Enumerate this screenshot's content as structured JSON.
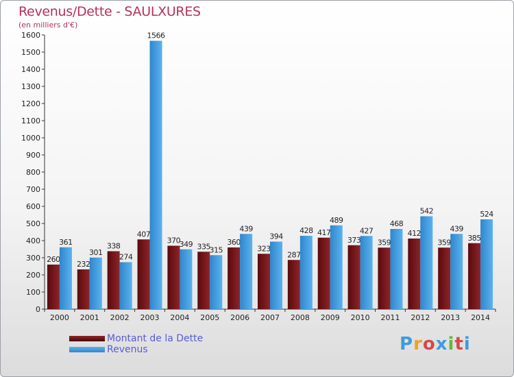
{
  "header": {
    "title": "Revenus/Dette - SAULXURES",
    "subtitle": "(en milliers d'€)"
  },
  "colors": {
    "title": "#b5305c",
    "debt": "#7a1418",
    "revenue": "#3d9be0",
    "legend_text": "#5a5adc"
  },
  "legend": {
    "debt_label": "Montant de la Dette",
    "revenue_label": "Revenus"
  },
  "logo": {
    "text": "Proxiti"
  },
  "chart_data": {
    "type": "bar",
    "title": "Revenus/Dette - SAULXURES",
    "subtitle": "(en milliers d'€)",
    "categories": [
      "2000",
      "2001",
      "2002",
      "2003",
      "2004",
      "2005",
      "2006",
      "2007",
      "2008",
      "2009",
      "2010",
      "2011",
      "2012",
      "2013",
      "2014"
    ],
    "series": [
      {
        "name": "Montant de la Dette",
        "color": "#7a1418",
        "values": [
          260,
          232,
          338,
          407,
          370,
          335,
          360,
          323,
          287,
          417,
          373,
          359,
          412,
          359,
          385
        ]
      },
      {
        "name": "Revenus",
        "color": "#3d9be0",
        "values": [
          361,
          301,
          274,
          1566,
          349,
          315,
          439,
          394,
          428,
          489,
          427,
          468,
          542,
          439,
          524
        ]
      }
    ],
    "ylim": [
      0,
      1600
    ],
    "yticks": [
      0,
      100,
      200,
      300,
      400,
      500,
      600,
      700,
      800,
      900,
      1000,
      1100,
      1200,
      1300,
      1400,
      1500,
      1600
    ],
    "grid": false,
    "legend_position": "bottom-left"
  }
}
